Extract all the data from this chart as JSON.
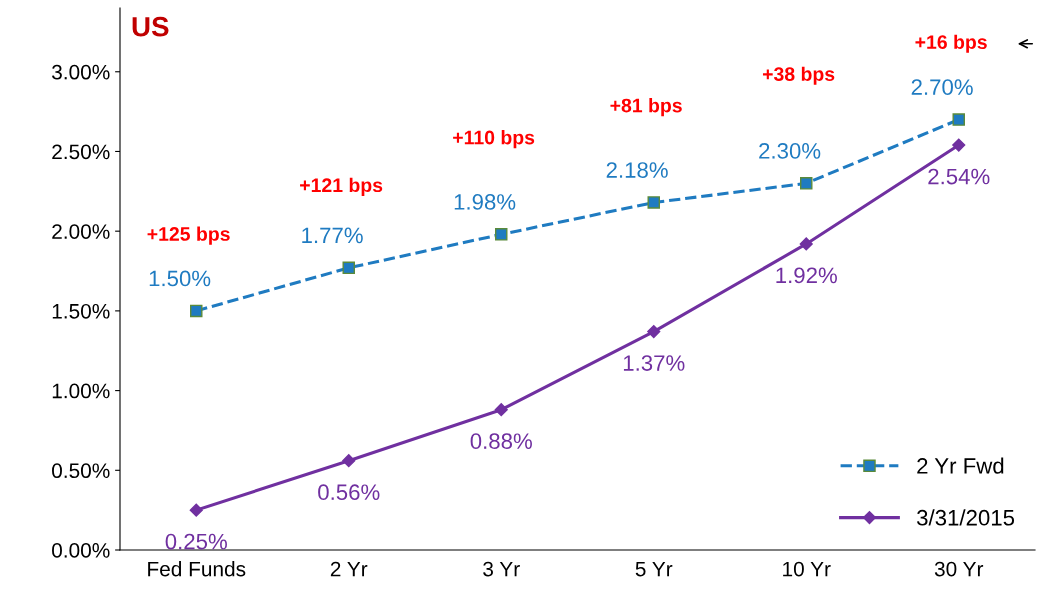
{
  "chart_data": {
    "type": "line",
    "title": "US",
    "categories": [
      "Fed Funds",
      "2 Yr",
      "3 Yr",
      "5 Yr",
      "10 Yr",
      "30 Yr"
    ],
    "series": [
      {
        "name": "2 Yr Fwd",
        "color": "#1f7bc1",
        "values": [
          1.5,
          1.77,
          1.98,
          2.18,
          2.3,
          2.7
        ],
        "line_style": "dashed",
        "marker": "square",
        "value_labels": [
          "1.50%",
          "1.77%",
          "1.98%",
          "2.18%",
          "2.30%",
          "2.70%"
        ]
      },
      {
        "name": "3/31/2015",
        "color": "#7030a0",
        "values": [
          0.25,
          0.56,
          0.88,
          1.37,
          1.92,
          2.54
        ],
        "line_style": "solid",
        "marker": "diamond",
        "value_labels": [
          "0.25%",
          "0.56%",
          "0.88%",
          "1.37%",
          "1.92%",
          "2.54%"
        ]
      }
    ],
    "ylim": [
      0,
      3.4
    ],
    "yticks": [
      {
        "value": 0,
        "label": "0.00%"
      },
      {
        "value": 0.5,
        "label": "0.50%"
      },
      {
        "value": 1.0,
        "label": "1.00%"
      },
      {
        "value": 1.5,
        "label": "1.50%"
      },
      {
        "value": 2.0,
        "label": "2.00%"
      },
      {
        "value": 2.5,
        "label": "2.50%"
      },
      {
        "value": 3.0,
        "label": "3.00%"
      }
    ],
    "grid": false,
    "legend": "bottom right",
    "annotations": [
      "+125 bps",
      "+121 bps",
      "+110 bps",
      "+81 bps",
      "+38 bps",
      "+16 bps"
    ]
  }
}
